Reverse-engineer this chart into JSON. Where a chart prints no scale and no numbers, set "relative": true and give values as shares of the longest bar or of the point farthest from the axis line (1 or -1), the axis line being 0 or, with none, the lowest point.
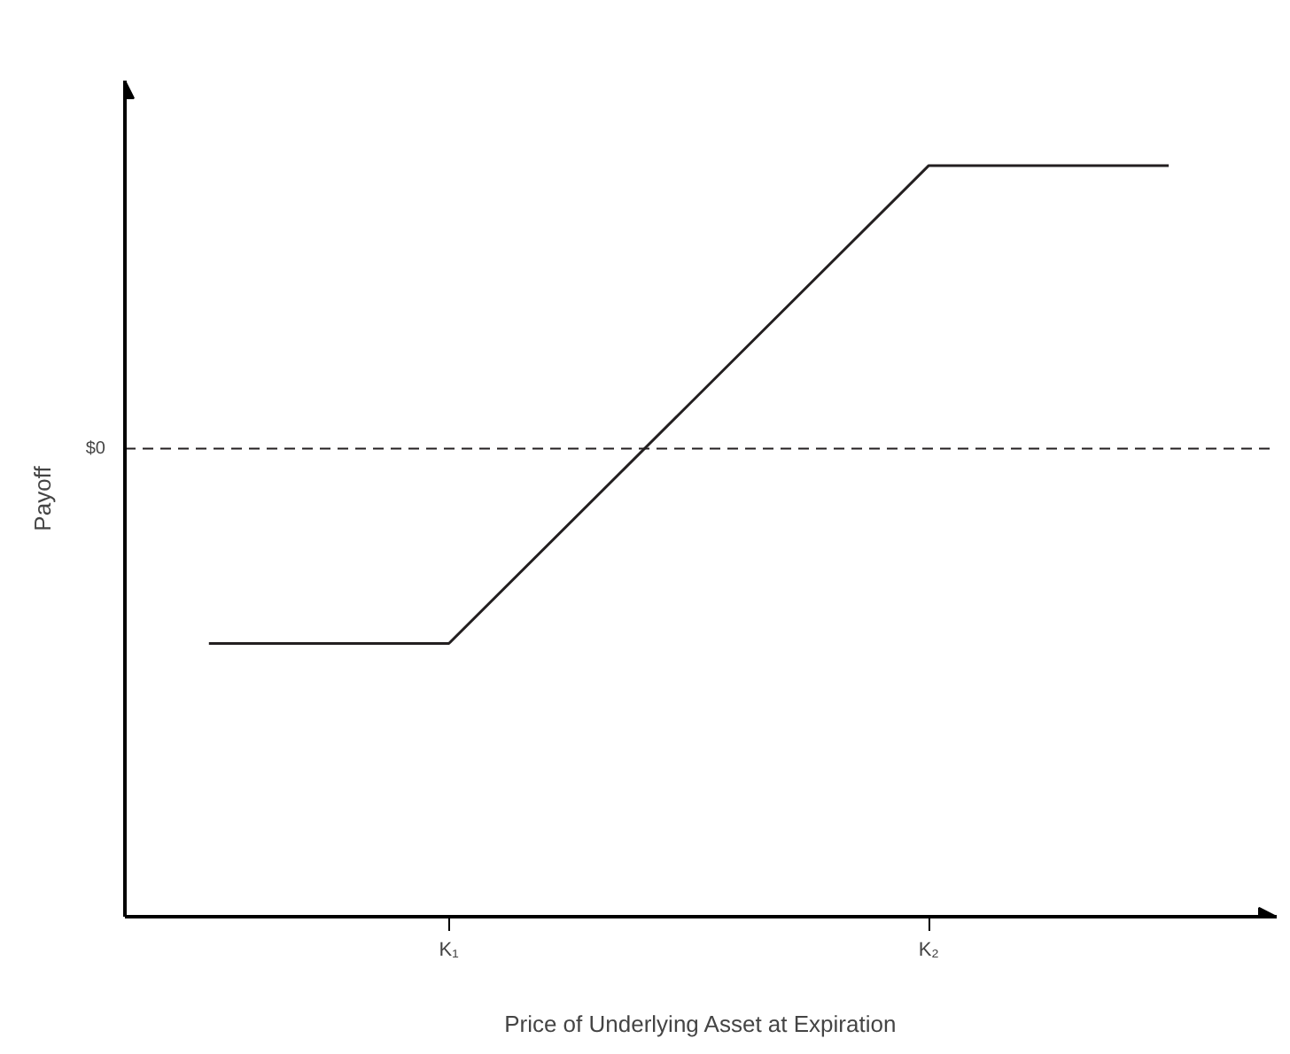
{
  "chart_data": {
    "type": "line",
    "xlabel": "Price of Underlying Asset at Expiration",
    "ylabel": "Payoff",
    "relative": true,
    "categories": [
      null,
      "K₁",
      null,
      "K₂",
      null
    ],
    "series": [
      {
        "color": "#231f20",
        "values": [
          -0.688,
          -0.688,
          0.156,
          1,
          1
        ]
      }
    ],
    "ref_lines": [
      {
        "axis": "y",
        "value": 0,
        "label": "$0",
        "line_style": "dashed",
        "color": "#231f20"
      }
    ],
    "grid": false,
    "marker": "none",
    "line_style": "solid"
  }
}
